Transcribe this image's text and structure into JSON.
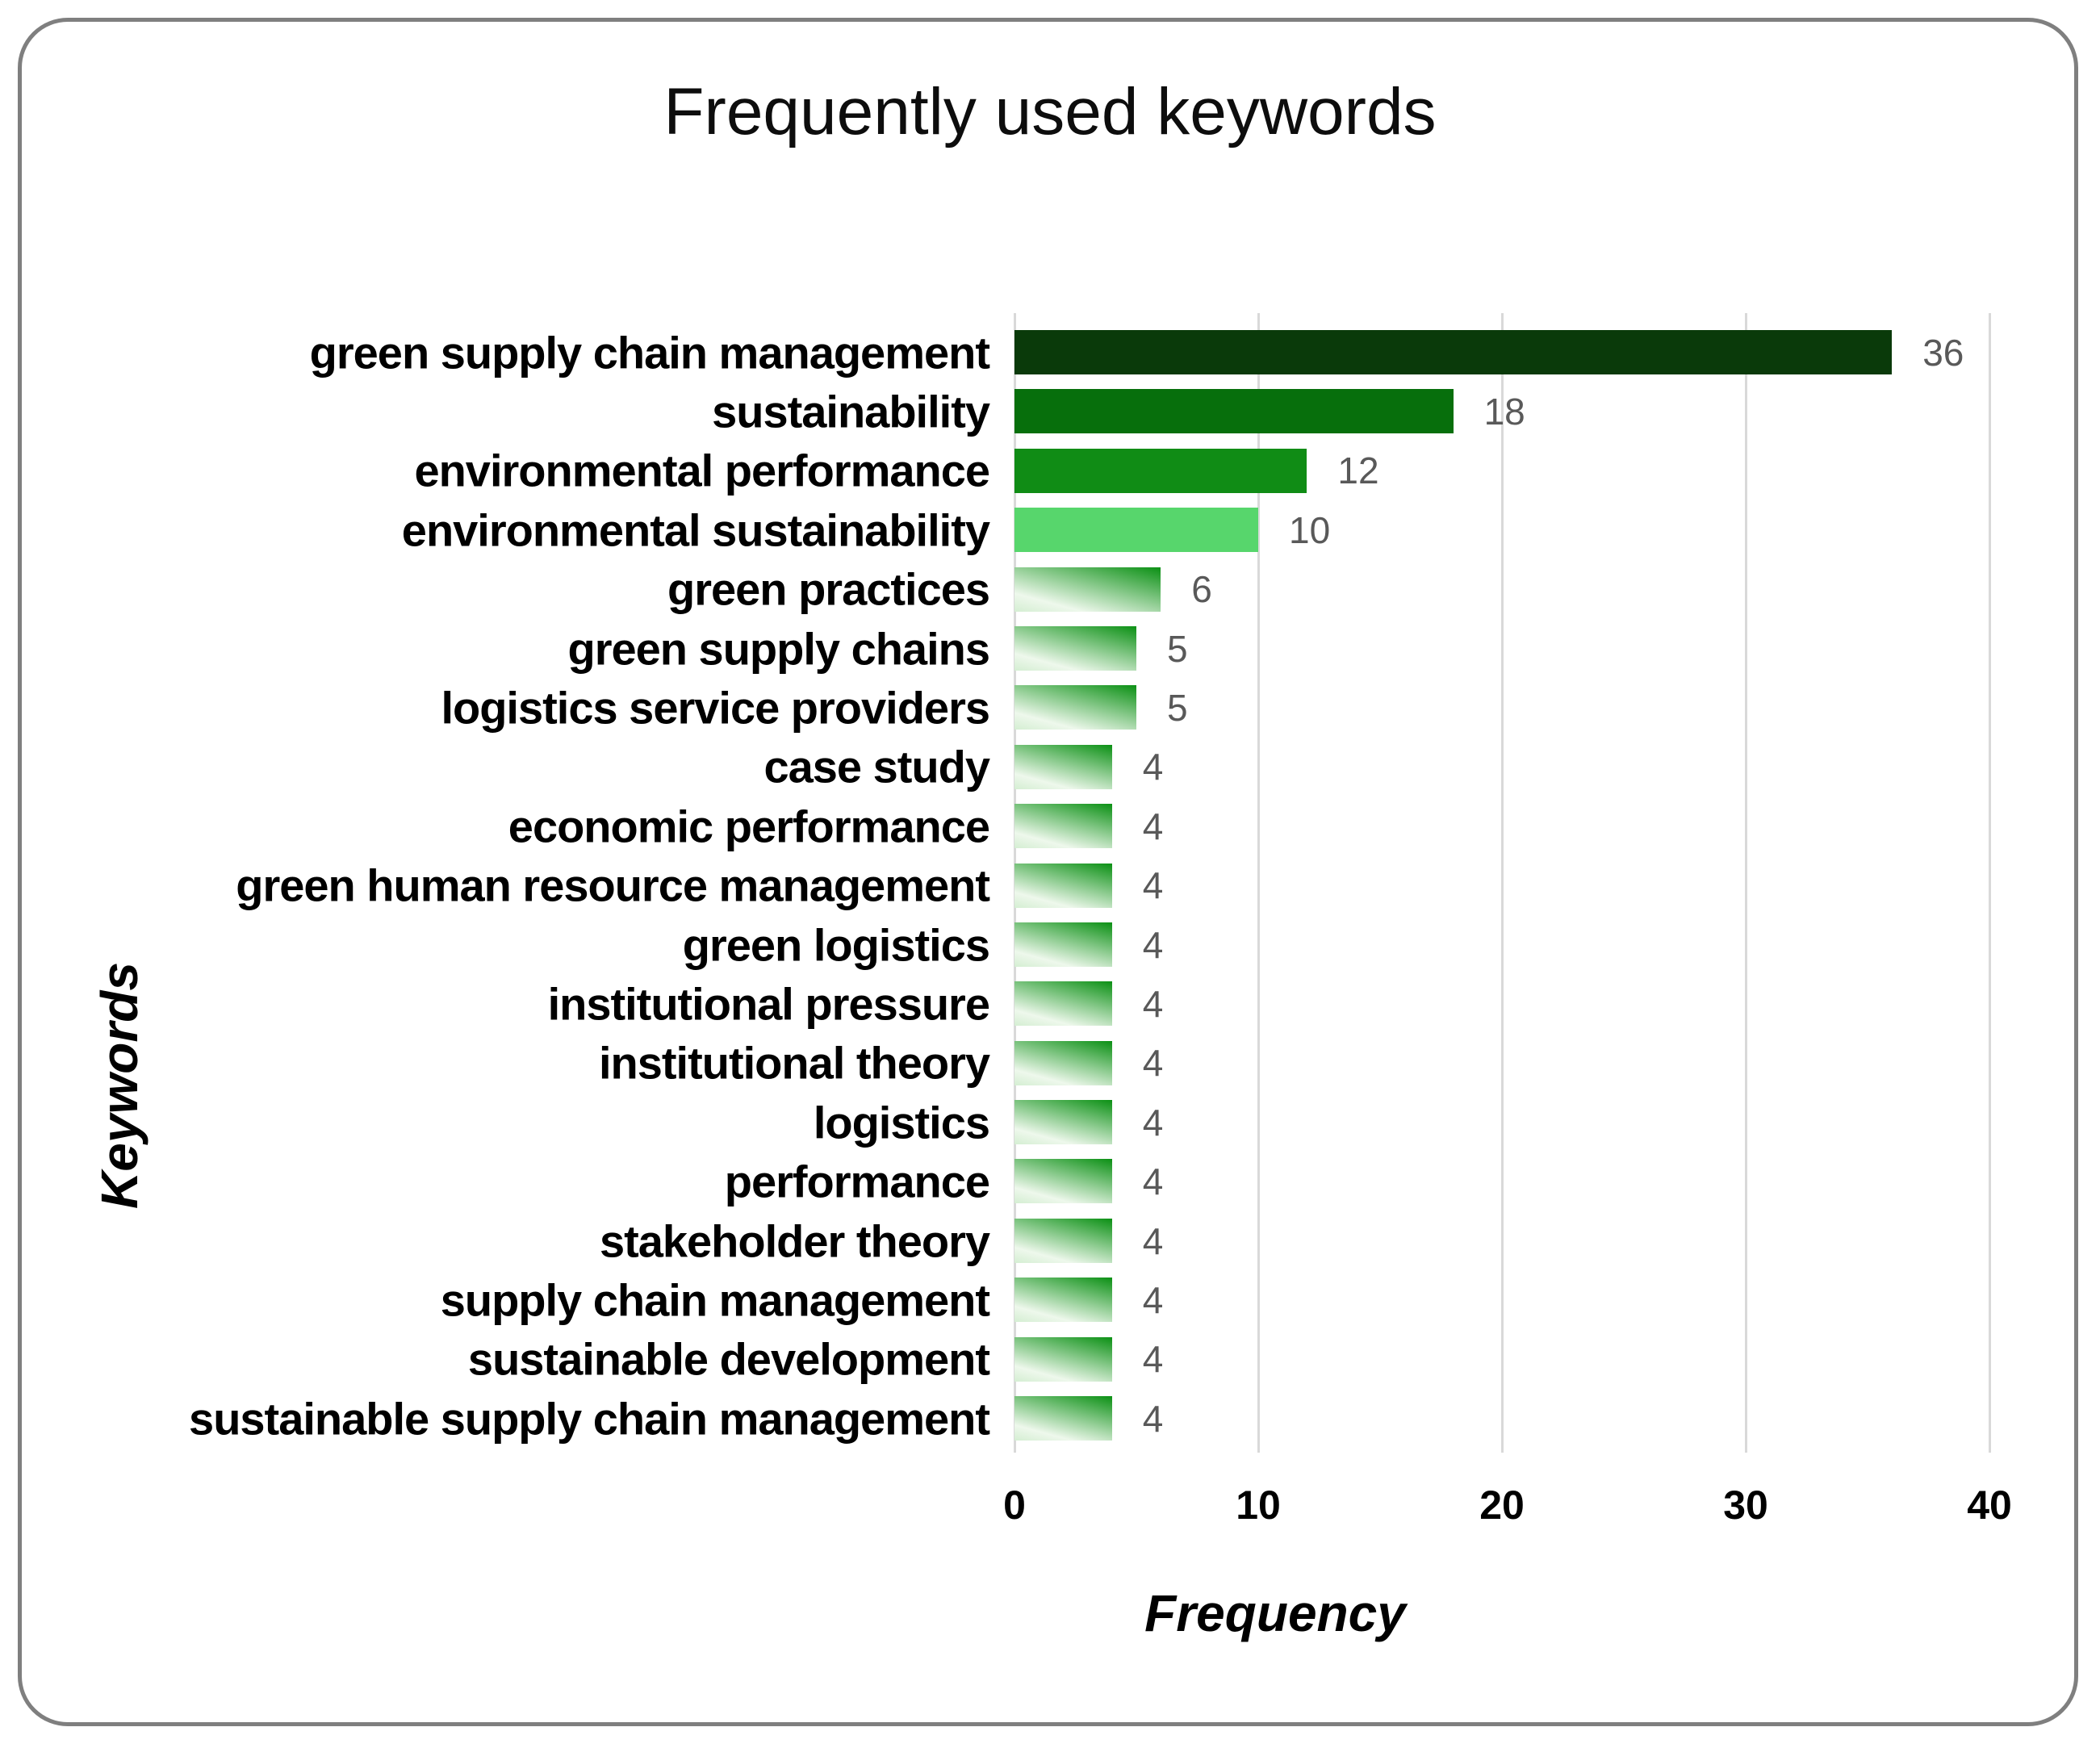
{
  "chart_data": {
    "type": "bar",
    "orientation": "horizontal",
    "title": "Frequently used keywords",
    "xlabel": "Frequency",
    "ylabel": "Keywords",
    "xlim": [
      0,
      40
    ],
    "xticks": [
      "0",
      "10",
      "20",
      "30",
      "40"
    ],
    "grid": true,
    "legend": false,
    "categories": [
      "green supply chain management",
      "sustainability",
      "environmental performance",
      "environmental sustainability",
      "green practices",
      "green supply chains",
      "logistics service providers",
      "case study",
      "economic performance",
      "green human resource management",
      "green logistics",
      "institutional pressure",
      "institutional theory",
      "logistics",
      "performance",
      "stakeholder theory",
      "supply chain management",
      "sustainable development",
      "sustainable supply chain management"
    ],
    "values": [
      36,
      18,
      12,
      10,
      6,
      5,
      5,
      4,
      4,
      4,
      4,
      4,
      4,
      4,
      4,
      4,
      4,
      4,
      4
    ],
    "bar_fills": [
      "#0a3a0a",
      "#076f0c",
      "#108c15",
      "#57d66c",
      "gradient",
      "gradient",
      "gradient",
      "gradient",
      "gradient",
      "gradient",
      "gradient",
      "gradient",
      "gradient",
      "gradient",
      "gradient",
      "gradient",
      "gradient",
      "gradient",
      "gradient"
    ],
    "colors": {
      "gradient_light": "#d4eed2",
      "gradient_highlight": "#eef8ec",
      "gradient_dark": "#0b9014",
      "gridline": "#d9d9d9",
      "value_label": "#595959",
      "axis_text": "#000000",
      "title_text": "#0d0d0d",
      "card_border": "#7f7f7f",
      "background": "#ffffff"
    }
  }
}
